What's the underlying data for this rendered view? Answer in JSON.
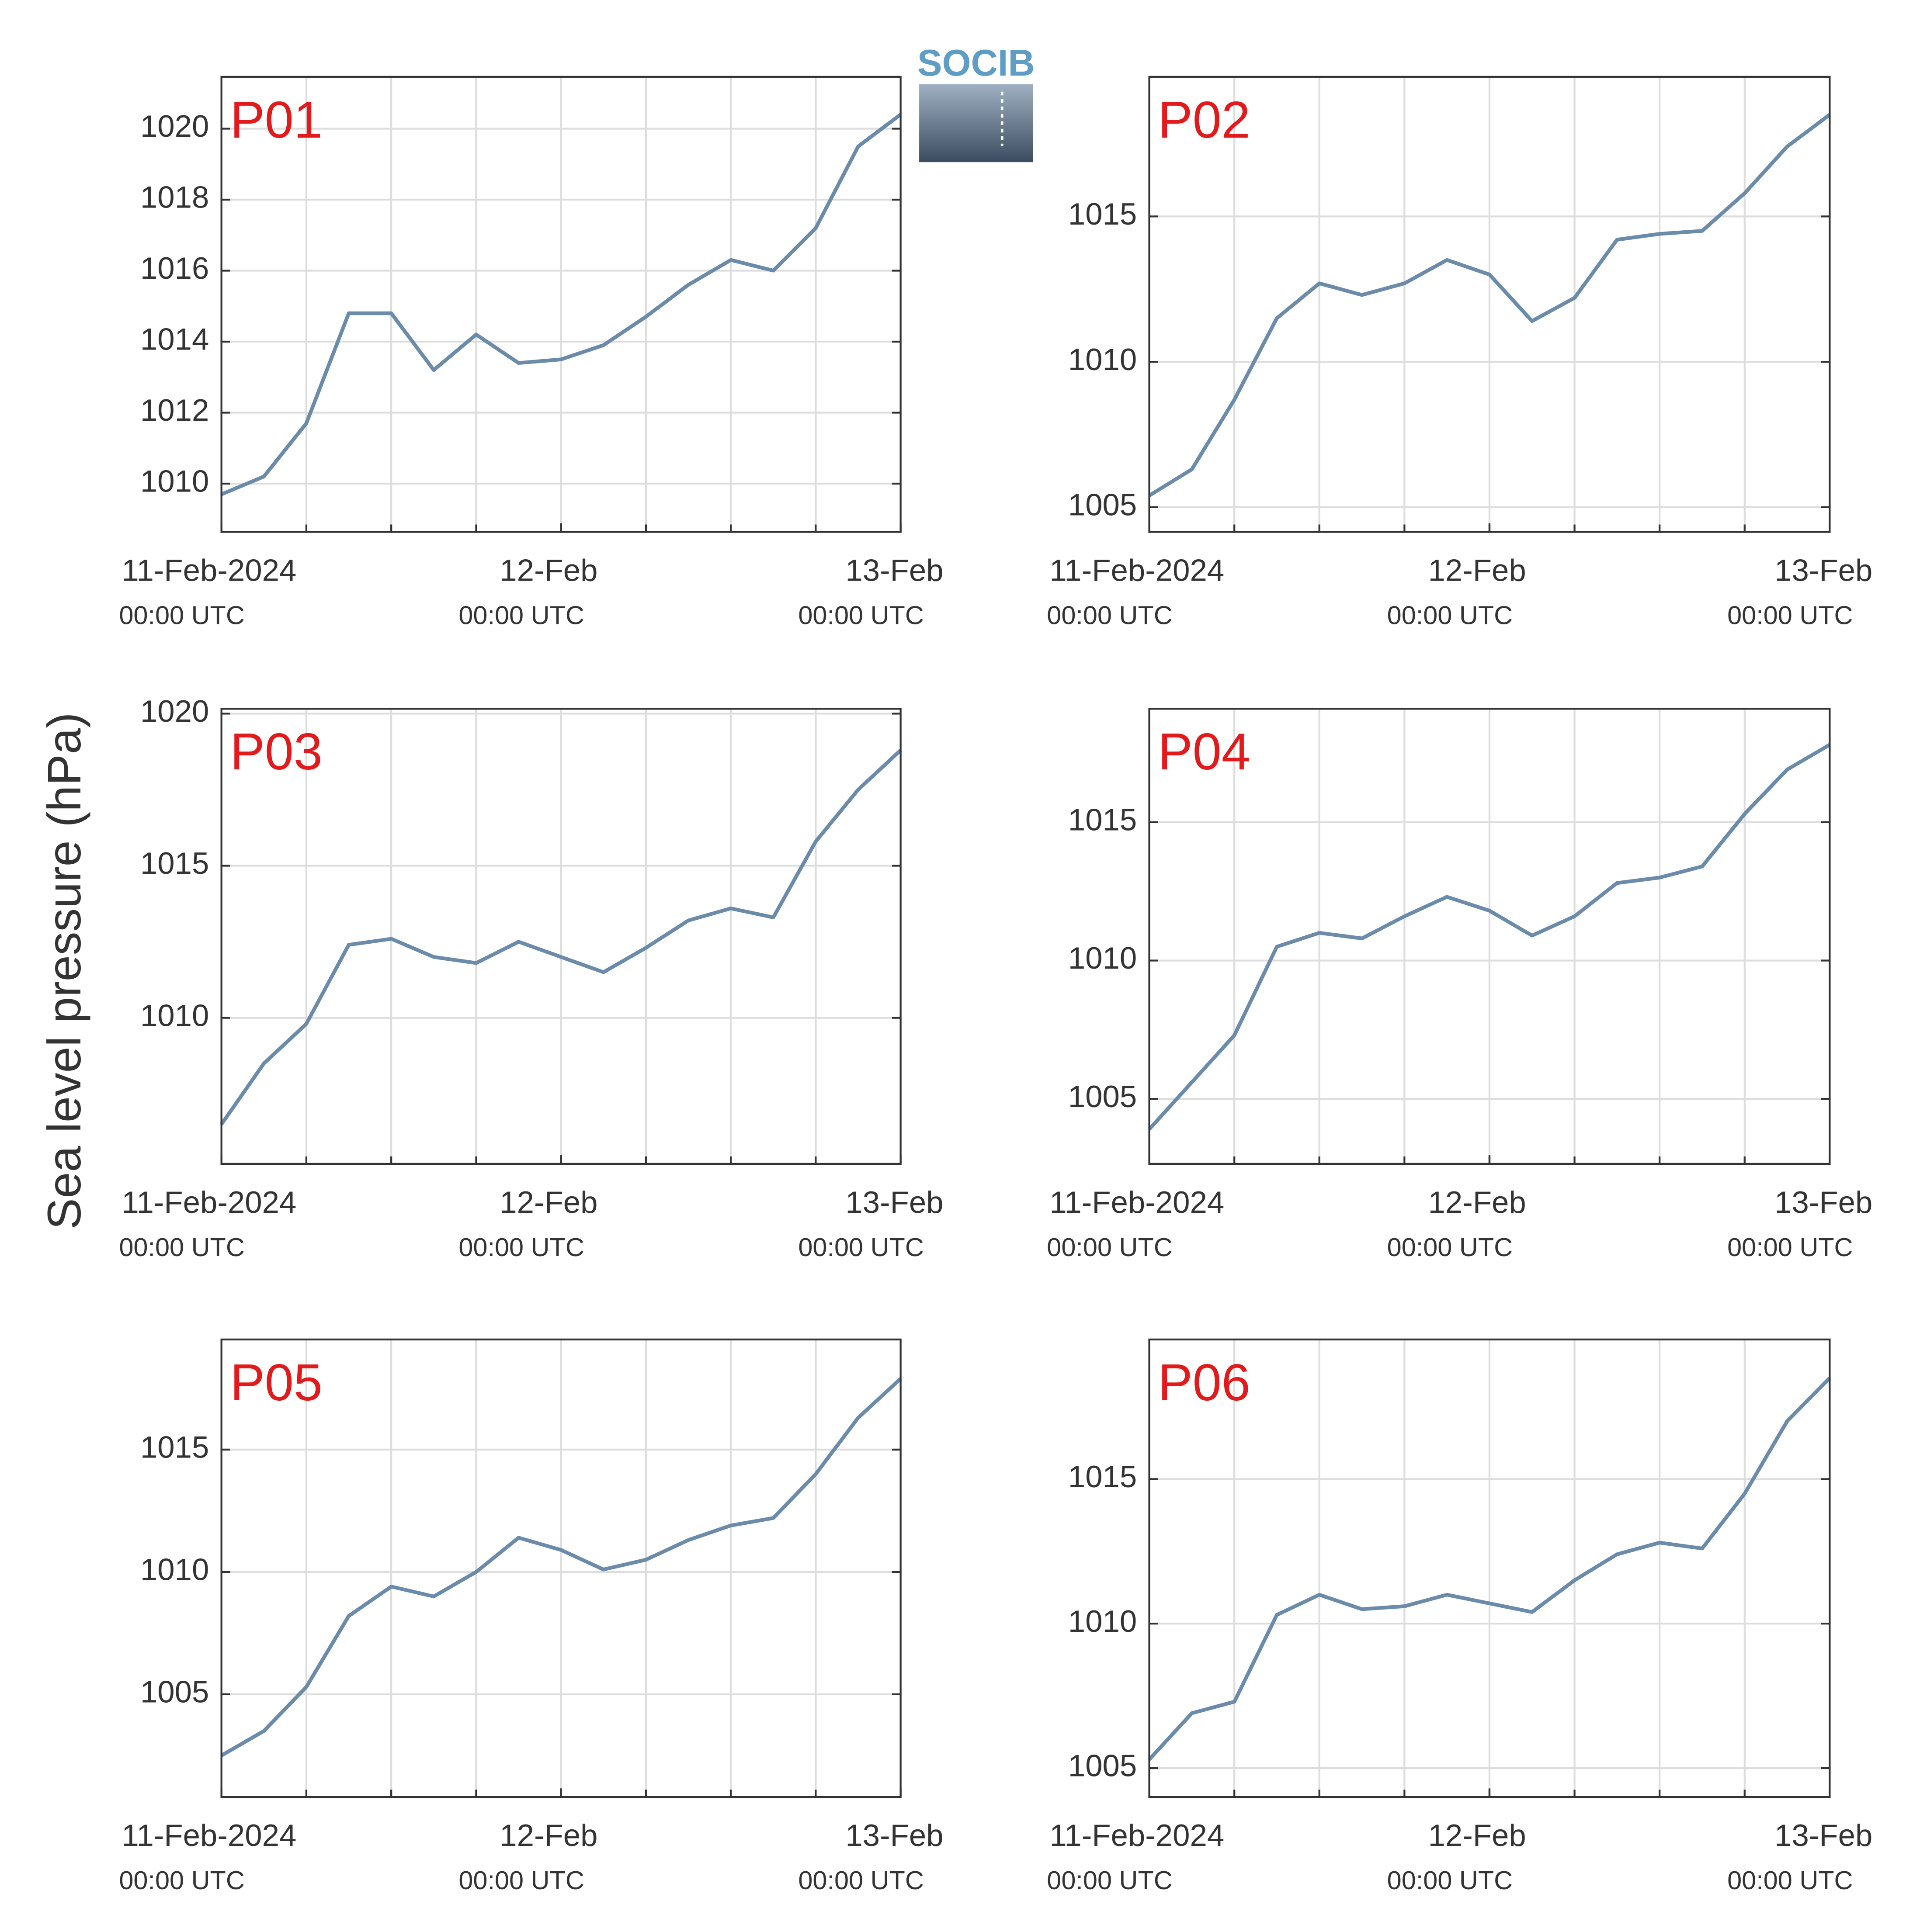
{
  "ylabel": "Sea level pressure (hPa)",
  "logo": "SOCIB",
  "chart_data": [
    {
      "type": "line",
      "title": "P01",
      "color": "#6b8bab",
      "title_color": "#e31a1c",
      "grid": true,
      "x": [
        "2024-02-11T00:00",
        "2024-02-11T03:00",
        "2024-02-11T06:00",
        "2024-02-11T09:00",
        "2024-02-11T12:00",
        "2024-02-11T15:00",
        "2024-02-11T18:00",
        "2024-02-11T21:00",
        "2024-02-12T00:00",
        "2024-02-12T03:00",
        "2024-02-12T06:00",
        "2024-02-12T09:00",
        "2024-02-12T12:00",
        "2024-02-12T15:00",
        "2024-02-12T18:00",
        "2024-02-12T21:00",
        "2024-02-13T00:00"
      ],
      "values": [
        1009.7,
        1010.2,
        1011.7,
        1014.8,
        1014.8,
        1013.2,
        1014.2,
        1013.4,
        1013.5,
        1013.9,
        1014.7,
        1015.6,
        1016.3,
        1016.0,
        1017.2,
        1019.5,
        1020.4
      ],
      "xlim": [
        "2024-02-11T00:00",
        "2024-02-13T00:00"
      ],
      "xgrid": [
        "2024-02-11T06:00",
        "2024-02-11T12:00",
        "2024-02-11T18:00",
        "2024-02-12T00:00",
        "2024-02-12T06:00",
        "2024-02-12T12:00",
        "2024-02-12T18:00"
      ],
      "xticks": [
        {
          "value": "2024-02-11T00:00",
          "label": "11-Feb-2024",
          "sublabel": "00:00 UTC"
        },
        {
          "value": "2024-02-12T00:00",
          "label": "12-Feb",
          "sublabel": "00:00 UTC"
        },
        {
          "value": "2024-02-13T00:00",
          "label": "13-Feb",
          "sublabel": "00:00 UTC"
        }
      ],
      "ylim": [
        1008.64,
        1021.46
      ],
      "yticks": [
        1010,
        1012,
        1014,
        1016,
        1018,
        1020
      ]
    },
    {
      "type": "line",
      "title": "P02",
      "color": "#6b8bab",
      "title_color": "#e31a1c",
      "grid": true,
      "x": [
        "2024-02-11T00:00",
        "2024-02-11T03:00",
        "2024-02-11T06:00",
        "2024-02-11T09:00",
        "2024-02-11T12:00",
        "2024-02-11T15:00",
        "2024-02-11T18:00",
        "2024-02-11T21:00",
        "2024-02-12T00:00",
        "2024-02-12T03:00",
        "2024-02-12T06:00",
        "2024-02-12T09:00",
        "2024-02-12T12:00",
        "2024-02-12T15:00",
        "2024-02-12T18:00",
        "2024-02-12T21:00",
        "2024-02-13T00:00"
      ],
      "values": [
        1005.4,
        1006.3,
        1008.7,
        1011.5,
        1012.7,
        1012.3,
        1012.7,
        1013.5,
        1013.0,
        1011.4,
        1012.2,
        1014.2,
        1014.4,
        1014.5,
        1015.8,
        1017.4,
        1018.5
      ],
      "xlim": [
        "2024-02-11T00:00",
        "2024-02-13T00:00"
      ],
      "xgrid": [
        "2024-02-11T06:00",
        "2024-02-11T12:00",
        "2024-02-11T18:00",
        "2024-02-12T00:00",
        "2024-02-12T06:00",
        "2024-02-12T12:00",
        "2024-02-12T18:00"
      ],
      "xticks": [
        {
          "value": "2024-02-11T00:00",
          "label": "11-Feb-2024",
          "sublabel": "00:00 UTC"
        },
        {
          "value": "2024-02-12T00:00",
          "label": "12-Feb",
          "sublabel": "00:00 UTC"
        },
        {
          "value": "2024-02-13T00:00",
          "label": "13-Feb",
          "sublabel": "00:00 UTC"
        }
      ],
      "ylim": [
        1004.15,
        1019.8
      ],
      "yticks": [
        1005,
        1010,
        1015
      ]
    },
    {
      "type": "line",
      "title": "P03",
      "color": "#6b8bab",
      "title_color": "#e31a1c",
      "grid": true,
      "x": [
        "2024-02-11T00:00",
        "2024-02-11T03:00",
        "2024-02-11T06:00",
        "2024-02-11T09:00",
        "2024-02-11T12:00",
        "2024-02-11T15:00",
        "2024-02-11T18:00",
        "2024-02-11T21:00",
        "2024-02-12T00:00",
        "2024-02-12T03:00",
        "2024-02-12T06:00",
        "2024-02-12T09:00",
        "2024-02-12T12:00",
        "2024-02-12T15:00",
        "2024-02-12T18:00",
        "2024-02-12T21:00",
        "2024-02-13T00:00"
      ],
      "values": [
        1006.5,
        1008.5,
        1009.8,
        1012.4,
        1012.6,
        1012.0,
        1011.8,
        1012.5,
        1012.0,
        1011.5,
        1012.3,
        1013.2,
        1013.6,
        1013.3,
        1015.8,
        1017.5,
        1018.8
      ],
      "xlim": [
        "2024-02-11T00:00",
        "2024-02-13T00:00"
      ],
      "xgrid": [
        "2024-02-11T06:00",
        "2024-02-11T12:00",
        "2024-02-11T18:00",
        "2024-02-12T00:00",
        "2024-02-12T06:00",
        "2024-02-12T12:00",
        "2024-02-12T18:00"
      ],
      "xticks": [
        {
          "value": "2024-02-11T00:00",
          "label": "11-Feb-2024",
          "sublabel": "00:00 UTC"
        },
        {
          "value": "2024-02-12T00:00",
          "label": "12-Feb",
          "sublabel": "00:00 UTC"
        },
        {
          "value": "2024-02-13T00:00",
          "label": "13-Feb",
          "sublabel": "00:00 UTC"
        }
      ],
      "ylim": [
        1005.2,
        1020.16
      ],
      "yticks": [
        1010,
        1015,
        1020
      ]
    },
    {
      "type": "line",
      "title": "P04",
      "color": "#6b8bab",
      "title_color": "#e31a1c",
      "grid": true,
      "x": [
        "2024-02-11T00:00",
        "2024-02-11T03:00",
        "2024-02-11T06:00",
        "2024-02-11T09:00",
        "2024-02-11T12:00",
        "2024-02-11T15:00",
        "2024-02-11T18:00",
        "2024-02-11T21:00",
        "2024-02-12T00:00",
        "2024-02-12T03:00",
        "2024-02-12T06:00",
        "2024-02-12T09:00",
        "2024-02-12T12:00",
        "2024-02-12T15:00",
        "2024-02-12T18:00",
        "2024-02-12T21:00",
        "2024-02-13T00:00"
      ],
      "values": [
        1003.9,
        1005.6,
        1007.3,
        1010.5,
        1011.0,
        1010.8,
        1011.6,
        1012.3,
        1011.8,
        1010.9,
        1011.6,
        1012.8,
        1013.0,
        1013.4,
        1015.3,
        1016.9,
        1017.8
      ],
      "xlim": [
        "2024-02-11T00:00",
        "2024-02-13T00:00"
      ],
      "xgrid": [
        "2024-02-11T06:00",
        "2024-02-11T12:00",
        "2024-02-11T18:00",
        "2024-02-12T00:00",
        "2024-02-12T06:00",
        "2024-02-12T12:00",
        "2024-02-12T18:00"
      ],
      "xticks": [
        {
          "value": "2024-02-11T00:00",
          "label": "11-Feb-2024",
          "sublabel": "00:00 UTC"
        },
        {
          "value": "2024-02-12T00:00",
          "label": "12-Feb",
          "sublabel": "00:00 UTC"
        },
        {
          "value": "2024-02-13T00:00",
          "label": "13-Feb",
          "sublabel": "00:00 UTC"
        }
      ],
      "ylim": [
        1002.65,
        1019.1
      ],
      "yticks": [
        1005,
        1010,
        1015
      ]
    },
    {
      "type": "line",
      "title": "P05",
      "color": "#6b8bab",
      "title_color": "#e31a1c",
      "grid": true,
      "x": [
        "2024-02-11T00:00",
        "2024-02-11T03:00",
        "2024-02-11T06:00",
        "2024-02-11T09:00",
        "2024-02-11T12:00",
        "2024-02-11T15:00",
        "2024-02-11T18:00",
        "2024-02-11T21:00",
        "2024-02-12T00:00",
        "2024-02-12T03:00",
        "2024-02-12T06:00",
        "2024-02-12T09:00",
        "2024-02-12T12:00",
        "2024-02-12T15:00",
        "2024-02-12T18:00",
        "2024-02-12T21:00",
        "2024-02-13T00:00"
      ],
      "values": [
        1002.5,
        1003.5,
        1005.3,
        1008.2,
        1009.4,
        1009.0,
        1010.0,
        1011.4,
        1010.9,
        1010.1,
        1010.5,
        1011.3,
        1011.9,
        1012.2,
        1014.0,
        1016.3,
        1017.9
      ],
      "xlim": [
        "2024-02-11T00:00",
        "2024-02-13T00:00"
      ],
      "xgrid": [
        "2024-02-11T06:00",
        "2024-02-11T12:00",
        "2024-02-11T18:00",
        "2024-02-12T00:00",
        "2024-02-12T06:00",
        "2024-02-12T12:00",
        "2024-02-12T18:00"
      ],
      "xticks": [
        {
          "value": "2024-02-11T00:00",
          "label": "11-Feb-2024",
          "sublabel": "00:00 UTC"
        },
        {
          "value": "2024-02-12T00:00",
          "label": "12-Feb",
          "sublabel": "00:00 UTC"
        },
        {
          "value": "2024-02-13T00:00",
          "label": "13-Feb",
          "sublabel": "00:00 UTC"
        }
      ],
      "ylim": [
        1000.8,
        1019.5
      ],
      "yticks": [
        1005,
        1010,
        1015
      ]
    },
    {
      "type": "line",
      "title": "P06",
      "color": "#6b8bab",
      "title_color": "#e31a1c",
      "grid": true,
      "x": [
        "2024-02-11T00:00",
        "2024-02-11T03:00",
        "2024-02-11T06:00",
        "2024-02-11T09:00",
        "2024-02-11T12:00",
        "2024-02-11T15:00",
        "2024-02-11T18:00",
        "2024-02-11T21:00",
        "2024-02-12T00:00",
        "2024-02-12T03:00",
        "2024-02-12T06:00",
        "2024-02-12T09:00",
        "2024-02-12T12:00",
        "2024-02-12T15:00",
        "2024-02-12T18:00",
        "2024-02-12T21:00",
        "2024-02-13T00:00"
      ],
      "values": [
        1005.3,
        1006.9,
        1007.3,
        1010.3,
        1011.0,
        1010.5,
        1010.6,
        1011.0,
        1010.7,
        1010.4,
        1011.5,
        1012.4,
        1012.8,
        1012.6,
        1014.5,
        1017.0,
        1018.5
      ],
      "xlim": [
        "2024-02-11T00:00",
        "2024-02-13T00:00"
      ],
      "xgrid": [
        "2024-02-11T06:00",
        "2024-02-11T12:00",
        "2024-02-11T18:00",
        "2024-02-12T00:00",
        "2024-02-12T06:00",
        "2024-02-12T12:00",
        "2024-02-12T18:00"
      ],
      "xticks": [
        {
          "value": "2024-02-11T00:00",
          "label": "11-Feb-2024",
          "sublabel": "00:00 UTC"
        },
        {
          "value": "2024-02-12T00:00",
          "label": "12-Feb",
          "sublabel": "00:00 UTC"
        },
        {
          "value": "2024-02-13T00:00",
          "label": "13-Feb",
          "sublabel": "00:00 UTC"
        }
      ],
      "ylim": [
        1004.0,
        1019.83
      ],
      "yticks": [
        1005,
        1010,
        1015
      ]
    }
  ]
}
